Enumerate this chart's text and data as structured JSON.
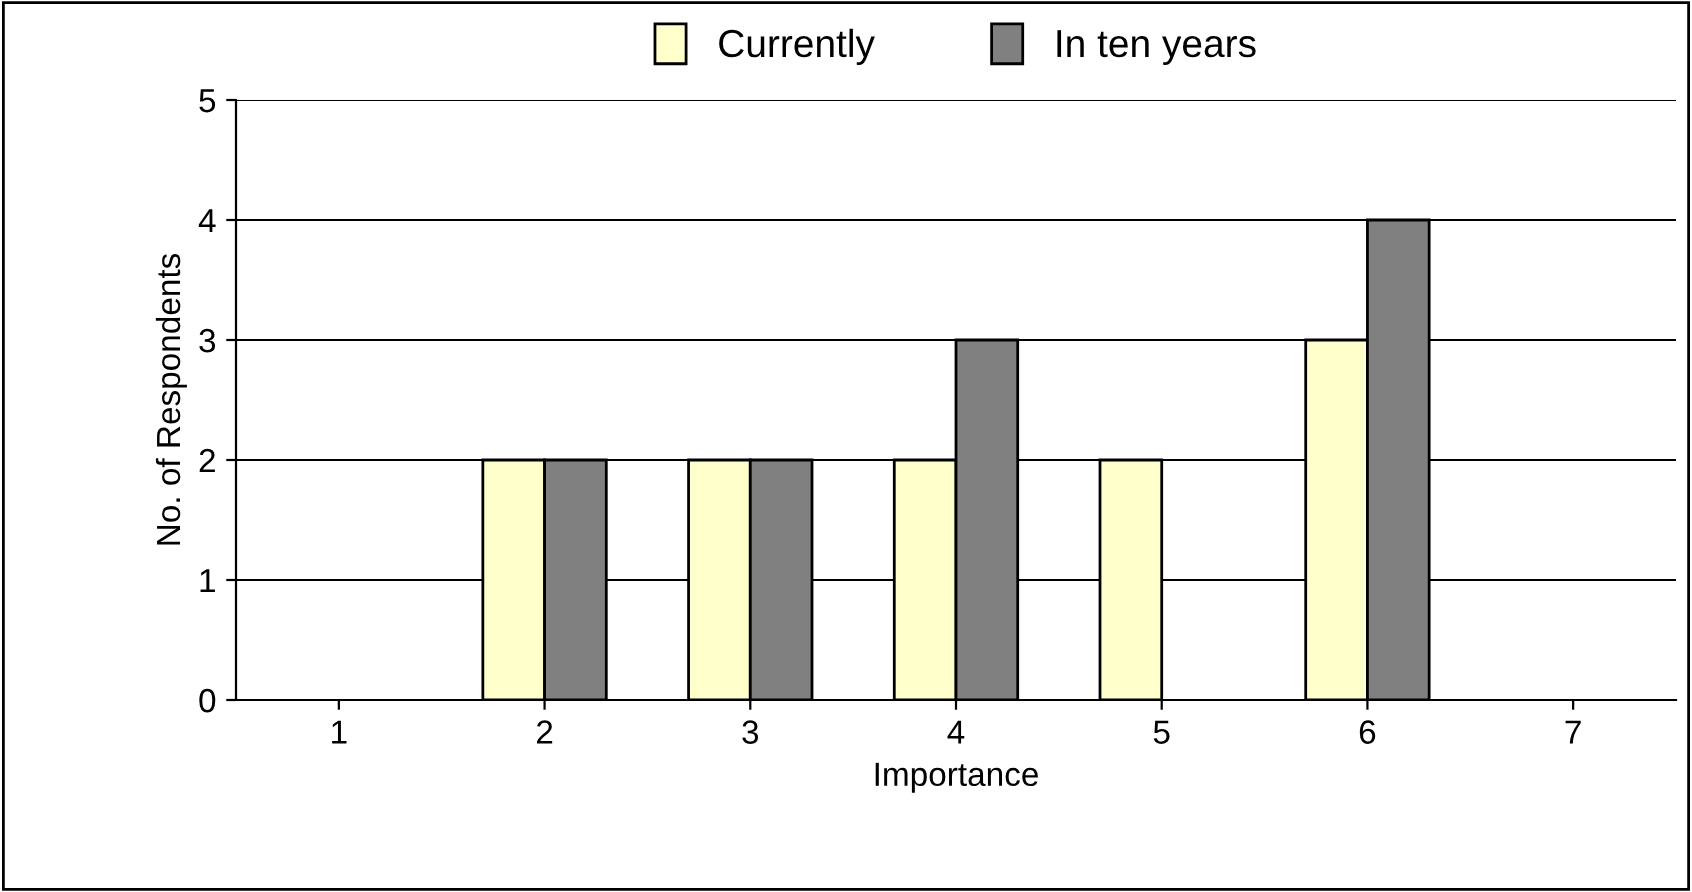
{
  "chart_data": {
    "type": "bar",
    "xlabel": "Importance",
    "ylabel": "No. of Respondents",
    "categories": [
      "1",
      "2",
      "3",
      "4",
      "5",
      "6",
      "7"
    ],
    "series": [
      {
        "name": "Currently",
        "color": "#ffffcc",
        "values": [
          null,
          2,
          2,
          2,
          2,
          3,
          null
        ]
      },
      {
        "name": "In ten years",
        "color": "#808080",
        "values": [
          null,
          2,
          2,
          3,
          null,
          4,
          null
        ]
      }
    ],
    "ylim": [
      0,
      5
    ],
    "yticks": [
      0,
      1,
      2,
      3,
      4,
      5
    ],
    "grid": "y",
    "legend": "top"
  }
}
